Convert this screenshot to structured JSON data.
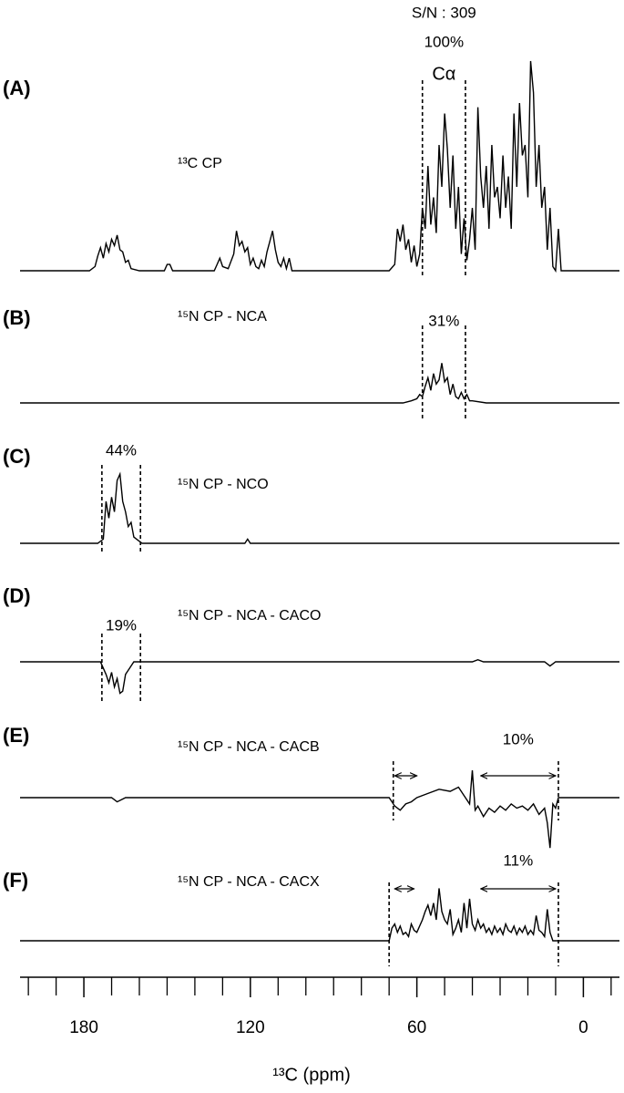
{
  "chart_data": {
    "type": "line",
    "x_label": "¹³C (ppm)",
    "xlim": [
      203,
      -13
    ],
    "xticks": [
      180,
      120,
      60,
      0
    ],
    "xminorticks": [
      200,
      190,
      170,
      160,
      150,
      140,
      130,
      110,
      100,
      90,
      80,
      70,
      50,
      40,
      30,
      20,
      10,
      -10
    ],
    "color": "#000000",
    "series": [
      {
        "panel": "(A)",
        "name": "¹³C CP",
        "percent": "100%",
        "annotations": [
          "S/N : 309",
          "Cα"
        ],
        "bounds": [
          58,
          42.5
        ],
        "x": [
          203,
          178,
          176,
          175,
          174,
          173,
          172,
          171,
          170,
          169,
          168,
          167,
          166,
          165,
          164,
          163,
          160,
          151,
          150,
          149,
          148,
          133,
          132,
          131,
          130,
          128,
          126,
          125,
          124,
          123,
          122,
          121,
          120,
          119,
          118,
          117,
          116,
          115,
          114,
          113,
          112,
          111,
          110,
          109,
          108,
          107,
          106,
          105,
          70,
          68,
          67,
          66,
          65,
          64,
          63,
          62,
          61,
          60,
          59,
          58,
          57,
          56,
          55,
          54,
          53,
          52,
          51,
          50,
          49,
          48,
          47,
          46,
          45,
          44,
          43,
          42,
          41,
          40,
          39,
          38,
          37,
          36,
          35,
          34,
          33,
          32,
          31,
          30,
          29,
          28,
          27,
          26,
          25,
          24,
          23,
          22,
          21,
          20,
          19,
          18,
          17,
          16,
          15,
          14,
          13,
          12,
          11,
          10,
          9,
          8,
          -13
        ],
        "values": [
          0,
          0,
          2,
          7,
          11,
          6,
          13,
          9,
          15,
          12,
          17,
          10,
          9,
          4,
          5,
          1,
          0,
          0,
          3,
          3,
          0,
          0,
          3,
          6,
          2,
          1,
          8,
          19,
          12,
          14,
          9,
          11,
          3,
          6,
          2,
          1,
          5,
          2,
          9,
          14,
          19,
          10,
          4,
          2,
          6,
          1,
          6,
          0,
          0,
          3,
          20,
          14,
          22,
          10,
          15,
          4,
          12,
          2,
          8,
          30,
          20,
          50,
          22,
          35,
          18,
          60,
          40,
          75,
          58,
          30,
          55,
          20,
          40,
          8,
          25,
          5,
          15,
          30,
          10,
          78,
          45,
          30,
          50,
          20,
          60,
          35,
          40,
          25,
          55,
          30,
          45,
          20,
          75,
          40,
          80,
          55,
          60,
          35,
          100,
          85,
          40,
          60,
          30,
          40,
          10,
          30,
          2,
          0,
          20,
          0,
          0
        ]
      },
      {
        "panel": "(B)",
        "name": "¹⁵N CP - NCA",
        "percent": "31%",
        "bounds": [
          58,
          42.5
        ],
        "x": [
          203,
          65,
          62,
          60,
          59,
          58,
          57,
          56,
          55,
          54,
          53,
          52,
          51,
          50,
          49,
          48,
          47,
          46,
          45,
          44,
          43,
          42,
          41,
          40,
          35,
          -13
        ],
        "values": [
          0,
          0,
          1,
          2,
          4,
          3,
          8,
          12,
          6,
          14,
          9,
          11,
          19,
          10,
          12,
          4,
          9,
          3,
          2,
          5,
          2,
          4,
          1,
          1,
          0,
          0
        ]
      },
      {
        "panel": "(C)",
        "name": "¹⁵N CP - NCO",
        "percent": "44%",
        "bounds": [
          173.5,
          159.6
        ],
        "x": [
          203,
          175,
          173,
          172,
          171,
          170,
          169,
          168,
          167,
          166,
          165,
          164,
          163,
          162,
          161,
          159,
          122,
          121,
          120,
          -13
        ],
        "values": [
          0,
          0,
          2,
          20,
          12,
          22,
          15,
          30,
          33,
          20,
          15,
          8,
          10,
          3,
          2,
          0,
          0,
          2,
          0,
          0
        ]
      },
      {
        "panel": "(D)",
        "name": "¹⁵N CP - NCA - CACO",
        "percent": "19%",
        "bounds": [
          173.5,
          159.6
        ],
        "x": [
          203,
          174,
          172,
          171,
          170,
          169,
          168,
          167,
          166,
          165,
          164,
          162,
          40,
          38,
          36,
          14,
          12,
          10,
          -13
        ],
        "values": [
          0,
          0,
          -6,
          -10,
          -5,
          -12,
          -8,
          -15,
          -14,
          -6,
          -4,
          0,
          0,
          1,
          0,
          0,
          -2,
          0,
          0
        ]
      },
      {
        "panel": "(E)",
        "name": "¹⁵N CP - NCA - CACB",
        "percent": "10%",
        "bounds": [
          68.5,
          9
        ],
        "arrows": [
          [
            68,
            60
          ],
          [
            37,
            10
          ]
        ],
        "x": [
          203,
          170,
          168,
          165,
          70,
          68,
          66,
          64,
          62,
          60,
          56,
          52,
          48,
          45,
          43,
          41,
          40,
          39,
          38,
          36,
          34,
          32,
          30,
          28,
          26,
          24,
          22,
          20,
          18,
          16,
          14,
          13,
          12,
          11,
          10,
          9,
          -13
        ],
        "values": [
          0,
          0,
          -2,
          0,
          0,
          -4,
          -6,
          -3,
          -2,
          0,
          2,
          4,
          3,
          5,
          1,
          -3,
          13,
          -6,
          -4,
          -9,
          -5,
          -7,
          -4,
          -6,
          -3,
          -5,
          -4,
          -6,
          -3,
          -8,
          -5,
          -12,
          -24,
          -3,
          -5,
          0,
          0
        ]
      },
      {
        "panel": "(F)",
        "name": "¹⁵N CP - NCA - CACX",
        "percent": "11%",
        "bounds": [
          70,
          9
        ],
        "arrows": [
          [
            68,
            61
          ],
          [
            37,
            10
          ]
        ],
        "x": [
          203,
          70,
          69,
          68,
          67,
          66,
          65,
          64,
          63,
          62,
          61,
          60,
          58,
          57,
          56,
          55,
          54,
          53,
          52,
          51,
          50,
          49,
          48,
          47,
          46,
          45,
          44,
          43,
          42,
          41,
          40,
          39,
          38,
          37,
          36,
          35,
          34,
          33,
          32,
          31,
          30,
          29,
          28,
          27,
          26,
          25,
          24,
          23,
          22,
          21,
          20,
          19,
          18,
          17,
          16,
          15,
          14,
          13,
          12,
          11,
          -13
        ],
        "values": [
          0,
          0,
          6,
          8,
          4,
          7,
          3,
          4,
          2,
          8,
          5,
          4,
          10,
          14,
          17,
          12,
          18,
          10,
          25,
          14,
          10,
          8,
          15,
          3,
          6,
          10,
          4,
          18,
          6,
          20,
          8,
          5,
          10,
          6,
          8,
          4,
          6,
          3,
          7,
          4,
          6,
          3,
          8,
          5,
          4,
          7,
          3,
          6,
          4,
          7,
          3,
          5,
          3,
          12,
          5,
          4,
          2,
          15,
          4,
          0,
          0
        ]
      }
    ]
  }
}
